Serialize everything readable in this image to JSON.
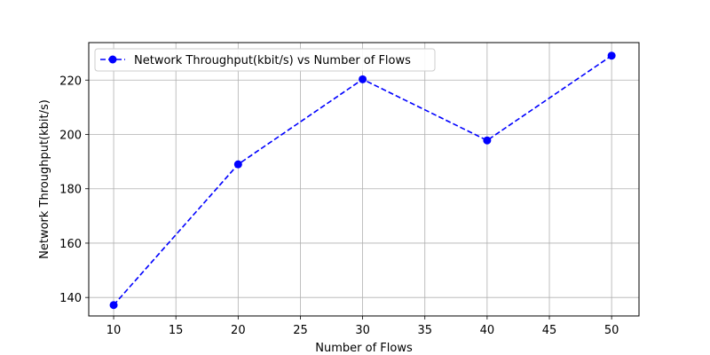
{
  "chart_data": {
    "type": "line",
    "title": "",
    "xlabel": "Number of Flows",
    "ylabel": "Network Throughput(kbit/s)",
    "x": [
      10,
      20,
      30,
      40,
      50
    ],
    "series": [
      {
        "name": "Network Throughput(kbit/s) vs Number of Flows",
        "values": [
          137.2,
          189.0,
          220.3,
          197.8,
          229.0
        ],
        "color": "#0000ff",
        "line_style": "dashed",
        "marker": "circle"
      }
    ],
    "xlim": [
      8,
      52.2
    ],
    "ylim": [
      133.2,
      233.8
    ],
    "xticks": [
      10,
      15,
      20,
      25,
      30,
      35,
      40,
      45,
      50
    ],
    "yticks": [
      140,
      160,
      180,
      200,
      220
    ],
    "grid": true,
    "legend_position": "top-left"
  }
}
